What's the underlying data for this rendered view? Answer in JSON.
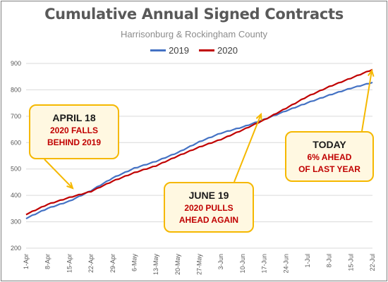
{
  "chart_data": {
    "type": "line",
    "title": "Cumulative Annual Signed Contracts",
    "subtitle": "Harrisonburg & Rockingham County",
    "ylim": [
      200,
      900
    ],
    "yticks": [
      200,
      300,
      400,
      500,
      600,
      700,
      800,
      900
    ],
    "xlabels": [
      "1-Apr",
      "8-Apr",
      "15-Apr",
      "22-Apr",
      "29-Apr",
      "6-May",
      "13-May",
      "20-May",
      "27-May",
      "3-Jun",
      "10-Jun",
      "17-Jun",
      "24-Jun",
      "1-Jul",
      "8-Jul",
      "15-Jul",
      "22-Jul"
    ],
    "legend_position": "top-center",
    "grid": true,
    "series": [
      {
        "name": "2019",
        "color": "#4472c4",
        "values": [
          313,
          351,
          378,
          418,
          466,
          503,
          529,
          562,
          603,
          636,
          659,
          688,
          720,
          751,
          780,
          806,
          828
        ]
      },
      {
        "name": "2020",
        "color": "#c00000",
        "values": [
          328,
          366,
          392,
          415,
          454,
          486,
          512,
          549,
          583,
          612,
          648,
          686,
          730,
          775,
          812,
          844,
          877
        ]
      }
    ],
    "annotations": [
      {
        "head": "APRIL 18",
        "body": "2020 FALLS\nBEHIND 2019"
      },
      {
        "head": "JUNE 19",
        "body": "2020 PULLS\nAHEAD AGAIN"
      },
      {
        "head": "TODAY",
        "body": "6% AHEAD\nOF LAST YEAR"
      }
    ]
  }
}
